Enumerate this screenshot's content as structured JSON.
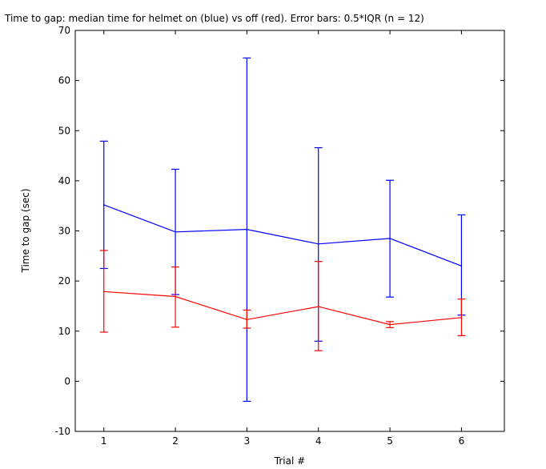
{
  "chart_data": {
    "type": "line",
    "title": "Time to gap: median time for helmet on (blue) vs off (red). Error bars: 0.5*IQR (n = 12)",
    "xlabel": "Trial #",
    "ylabel": "Time to gap (sec)",
    "xlim": [
      0.6,
      6.6
    ],
    "ylim": [
      -10,
      70
    ],
    "xticks": [
      1,
      2,
      3,
      4,
      5,
      6
    ],
    "yticks": [
      -10,
      0,
      10,
      20,
      30,
      40,
      50,
      60,
      70
    ],
    "grid": false,
    "legend": "none",
    "x": [
      1,
      2,
      3,
      4,
      5,
      6
    ],
    "series": [
      {
        "color": "#0000ff",
        "values": [
          35.2,
          29.8,
          30.3,
          27.4,
          28.5,
          23.0
        ],
        "err_low": [
          22.5,
          17.3,
          -4.0,
          8.0,
          16.8,
          13.2
        ],
        "err_high": [
          47.9,
          42.3,
          64.5,
          46.6,
          40.1,
          33.2
        ]
      },
      {
        "color": "#ff0000",
        "values": [
          17.9,
          16.9,
          12.3,
          14.9,
          11.3,
          12.7
        ],
        "err_low": [
          9.8,
          10.8,
          10.6,
          6.1,
          10.7,
          9.1
        ],
        "err_high": [
          26.1,
          22.8,
          14.2,
          23.9,
          11.9,
          16.4
        ]
      }
    ]
  }
}
